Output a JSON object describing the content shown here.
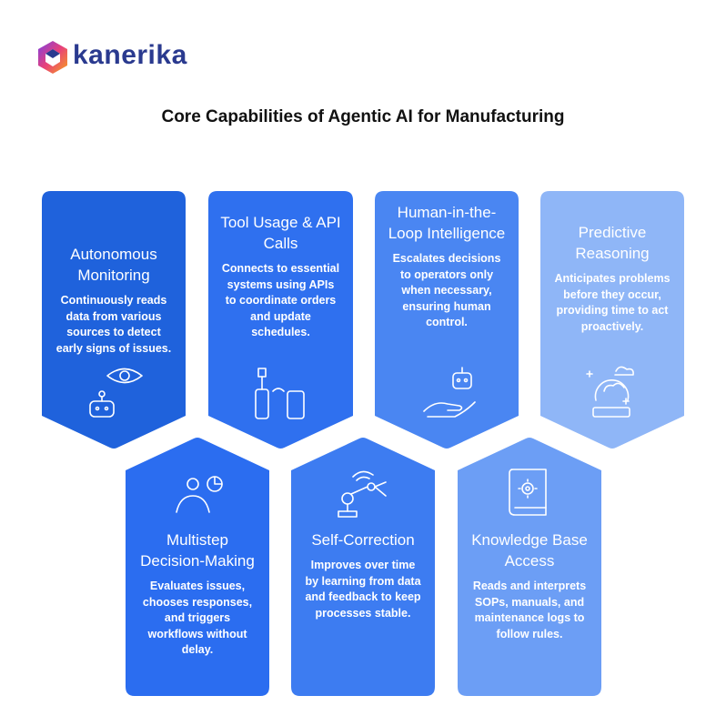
{
  "brand": "kanerika",
  "title": "Core Capabilities of Agentic AI for Manufacturing",
  "cards": [
    {
      "title": "Autonomous Monitoring",
      "description": "Continuously reads data from various sources to detect early signs of issues."
    },
    {
      "title": "Tool Usage & API Calls",
      "description": "Connects to essential systems using APIs to coordinate orders and update schedules."
    },
    {
      "title": "Human-in-the-Loop Intelligence",
      "description": "Escalates decisions to operators only when necessary, ensuring human control."
    },
    {
      "title": "Predictive Reasoning",
      "description": "Anticipates problems before they occur, providing time to act proactively."
    },
    {
      "title": "Multistep Decision-Making",
      "description": "Evaluates issues, chooses responses, and triggers workflows without delay."
    },
    {
      "title": "Self-Correction",
      "description": "Improves over time by learning from data and feedback to keep processes stable."
    },
    {
      "title": "Knowledge Base Access",
      "description": "Reads and interprets SOPs, manuals, and maintenance logs to follow rules."
    }
  ]
}
